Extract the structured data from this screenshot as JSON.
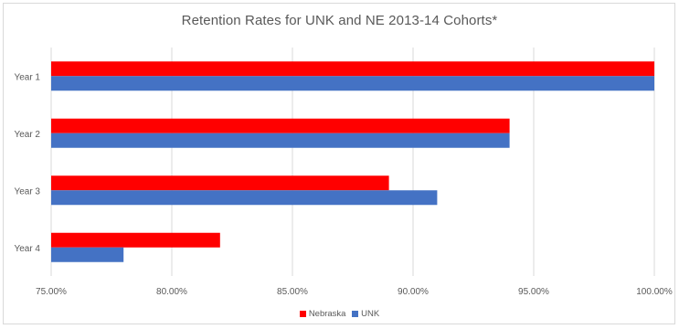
{
  "chart_data": {
    "type": "bar",
    "orientation": "horizontal",
    "title": "Retention Rates for UNK and NE 2013-14 Cohorts*",
    "xlabel": "",
    "ylabel": "",
    "categories": [
      "Year 1",
      "Year 2",
      "Year 3",
      "Year 4"
    ],
    "series": [
      {
        "name": "Nebraska",
        "color": "#ff0000",
        "values": [
          100,
          94,
          89,
          82
        ]
      },
      {
        "name": "UNK",
        "color": "#4472c4",
        "values": [
          100,
          94,
          91,
          78
        ]
      }
    ],
    "xlim": [
      75,
      100
    ],
    "x_ticks": [
      75,
      80,
      85,
      90,
      95,
      100
    ],
    "x_tick_labels": [
      "75.00%",
      "80.00%",
      "85.00%",
      "90.00%",
      "95.00%",
      "100.00%"
    ],
    "grid": true,
    "legend_position": "bottom"
  }
}
